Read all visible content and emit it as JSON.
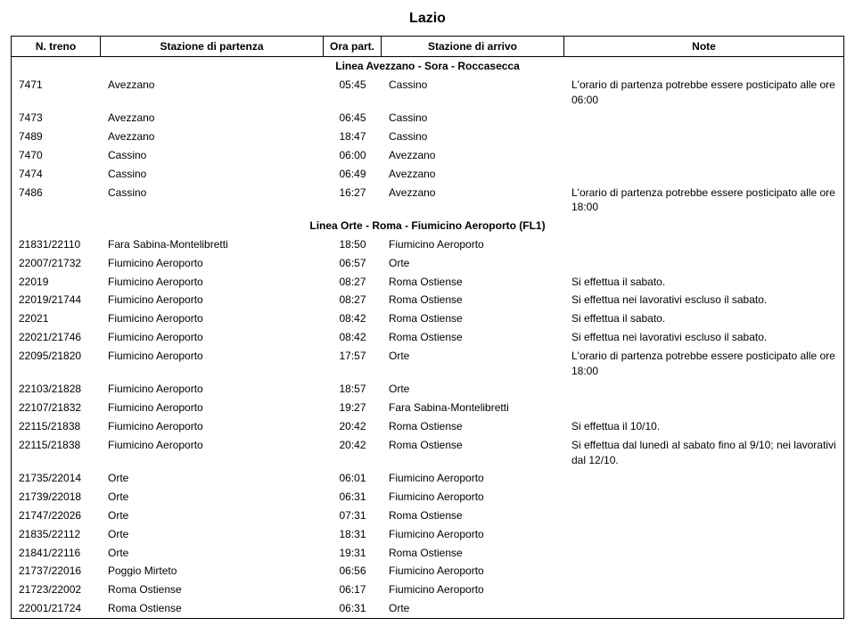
{
  "title": "Lazio",
  "columns": {
    "n": "N. treno",
    "dep": "Stazione di partenza",
    "time": "Ora part.",
    "arr": "Stazione di arrivo",
    "note": "Note"
  },
  "sections": [
    {
      "name": "Linea Avezzano - Sora - Roccasecca",
      "rows": [
        {
          "n": "7471",
          "dep": "Avezzano",
          "time": "05:45",
          "arr": "Cassino",
          "note": "L'orario di partenza potrebbe essere posticipato alle ore 06:00"
        },
        {
          "n": "7473",
          "dep": "Avezzano",
          "time": "06:45",
          "arr": "Cassino",
          "note": ""
        },
        {
          "n": "7489",
          "dep": "Avezzano",
          "time": "18:47",
          "arr": "Cassino",
          "note": ""
        },
        {
          "n": "7470",
          "dep": "Cassino",
          "time": "06:00",
          "arr": "Avezzano",
          "note": ""
        },
        {
          "n": "7474",
          "dep": "Cassino",
          "time": "06:49",
          "arr": "Avezzano",
          "note": ""
        },
        {
          "n": "7486",
          "dep": "Cassino",
          "time": "16:27",
          "arr": "Avezzano",
          "note": "L'orario di partenza potrebbe essere posticipato alle ore 18:00"
        }
      ]
    },
    {
      "name": "Linea Orte - Roma - Fiumicino Aeroporto (FL1)",
      "rows": [
        {
          "n": "21831/22110",
          "dep": "Fara Sabina-Montelibretti",
          "time": "18:50",
          "arr": "Fiumicino Aeroporto",
          "note": ""
        },
        {
          "n": "22007/21732",
          "dep": "Fiumicino Aeroporto",
          "time": "06:57",
          "arr": "Orte",
          "note": ""
        },
        {
          "n": "22019",
          "dep": "Fiumicino Aeroporto",
          "time": "08:27",
          "arr": "Roma Ostiense",
          "note": "Si effettua il sabato."
        },
        {
          "n": "22019/21744",
          "dep": "Fiumicino Aeroporto",
          "time": "08:27",
          "arr": "Roma Ostiense",
          "note": "Si effettua nei lavorativi escluso il sabato."
        },
        {
          "n": "22021",
          "dep": "Fiumicino Aeroporto",
          "time": "08:42",
          "arr": "Roma Ostiense",
          "note": "Si effettua il sabato."
        },
        {
          "n": "22021/21746",
          "dep": "Fiumicino Aeroporto",
          "time": "08:42",
          "arr": "Roma Ostiense",
          "note": "Si effettua nei lavorativi escluso il sabato."
        },
        {
          "n": "22095/21820",
          "dep": "Fiumicino Aeroporto",
          "time": "17:57",
          "arr": "Orte",
          "note": "L'orario di partenza potrebbe essere posticipato alle ore 18:00"
        },
        {
          "n": "22103/21828",
          "dep": "Fiumicino Aeroporto",
          "time": "18:57",
          "arr": "Orte",
          "note": ""
        },
        {
          "n": "22107/21832",
          "dep": "Fiumicino Aeroporto",
          "time": "19:27",
          "arr": "Fara Sabina-Montelibretti",
          "note": ""
        },
        {
          "n": "22115/21838",
          "dep": "Fiumicino Aeroporto",
          "time": "20:42",
          "arr": "Roma Ostiense",
          "note": "Si effettua il 10/10."
        },
        {
          "n": "22115/21838",
          "dep": "Fiumicino Aeroporto",
          "time": "20:42",
          "arr": "Roma Ostiense",
          "note": "Si effettua dal lunedì al sabato fino al 9/10; nei lavorativi dal 12/10."
        },
        {
          "n": "21735/22014",
          "dep": "Orte",
          "time": "06:01",
          "arr": "Fiumicino Aeroporto",
          "note": ""
        },
        {
          "n": "21739/22018",
          "dep": "Orte",
          "time": "06:31",
          "arr": "Fiumicino Aeroporto",
          "note": ""
        },
        {
          "n": "21747/22026",
          "dep": "Orte",
          "time": "07:31",
          "arr": "Roma Ostiense",
          "note": ""
        },
        {
          "n": "21835/22112",
          "dep": "Orte",
          "time": "18:31",
          "arr": "Fiumicino Aeroporto",
          "note": ""
        },
        {
          "n": "21841/22116",
          "dep": "Orte",
          "time": "19:31",
          "arr": "Roma Ostiense",
          "note": ""
        },
        {
          "n": "21737/22016",
          "dep": "Poggio Mirteto",
          "time": "06:56",
          "arr": "Fiumicino Aeroporto",
          "note": ""
        },
        {
          "n": "21723/22002",
          "dep": "Roma Ostiense",
          "time": "06:17",
          "arr": "Fiumicino Aeroporto",
          "note": ""
        },
        {
          "n": "22001/21724",
          "dep": "Roma Ostiense",
          "time": "06:31",
          "arr": "Orte",
          "note": ""
        }
      ]
    }
  ]
}
